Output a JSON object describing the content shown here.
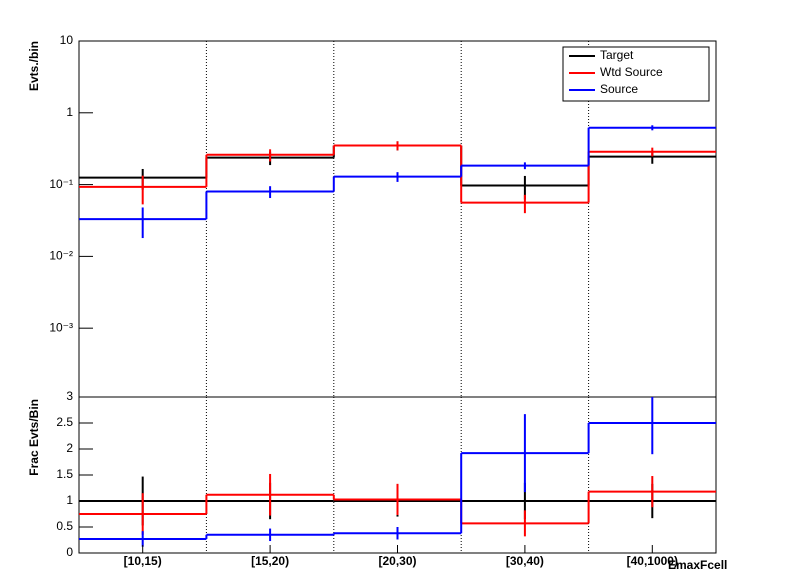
{
  "chart_data": [
    {
      "type": "step",
      "y_label": "Evts./bin",
      "log_y": true,
      "ylim": [
        0.00011,
        10
      ],
      "yticks": [
        {
          "value": 0.001,
          "label": "10⁻³"
        },
        {
          "value": 0.01,
          "label": "10⁻²"
        },
        {
          "value": 0.1,
          "label": "10⁻¹"
        },
        1,
        10
      ],
      "legend": "top-right",
      "grid_x": true,
      "series": [
        {
          "name": "Target",
          "color": "#000000",
          "values": [
            0.125,
            0.237,
            0.35,
            0.097,
            0.245
          ],
          "errors": [
            0.04,
            0.05,
            0.05,
            0.035,
            0.05
          ]
        },
        {
          "name": "Wtd Source",
          "color": "#ff0000",
          "values": [
            0.093,
            0.26,
            0.35,
            0.056,
            0.287
          ],
          "errors": [
            0.04,
            0.05,
            0.05,
            0.016,
            0.04
          ]
        },
        {
          "name": "Source",
          "color": "#0000ff",
          "values": [
            0.033,
            0.08,
            0.129,
            0.184,
            0.62
          ],
          "errors": [
            0.015,
            0.015,
            0.02,
            0.02,
            0.05
          ]
        }
      ]
    },
    {
      "type": "step",
      "y_label": "Frac Evts/Bin",
      "x_label": "EmaxFcell",
      "log_y": false,
      "categories": [
        "[10,15)",
        "[15,20)",
        "[20,30)",
        "[30,40)",
        "[40,1000)"
      ],
      "ylim": [
        0,
        3
      ],
      "yticks": [
        0,
        0.5,
        1,
        1.5,
        2,
        2.5,
        3
      ],
      "grid_x": true,
      "series": [
        {
          "name": "Target",
          "color": "#000000",
          "values": [
            1,
            1,
            1,
            1,
            1
          ],
          "errors": [
            0.47,
            0.35,
            0.3,
            0.35,
            0.33
          ]
        },
        {
          "name": "Wtd Source",
          "color": "#ff0000",
          "values": [
            0.75,
            1.12,
            1.03,
            0.57,
            1.18
          ],
          "errors": [
            0.4,
            0.4,
            0.3,
            0.25,
            0.3
          ]
        },
        {
          "name": "Source",
          "color": "#0000ff",
          "values": [
            0.27,
            0.35,
            0.38,
            1.92,
            2.5
          ],
          "errors": [
            0.15,
            0.12,
            0.12,
            0.75,
            0.6
          ]
        }
      ]
    }
  ]
}
